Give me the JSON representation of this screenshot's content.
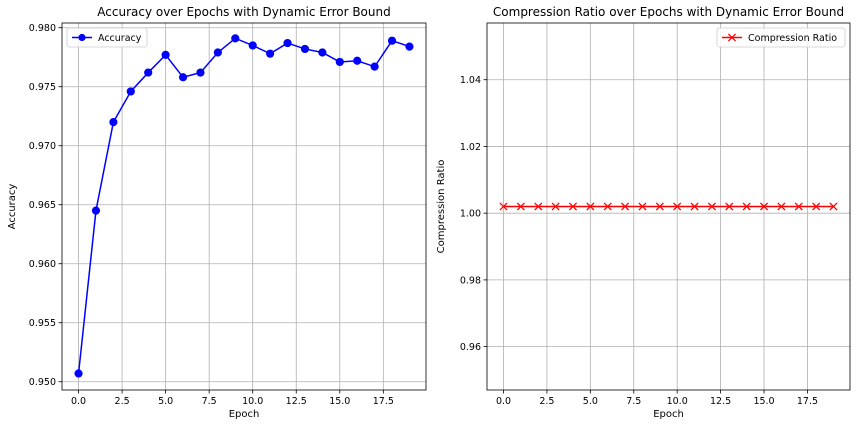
{
  "chart_data": [
    {
      "type": "line",
      "title": "Accuracy over Epochs with Dynamic Error Bound",
      "xlabel": "Epoch",
      "ylabel": "Accuracy",
      "xlim": [
        -0.95,
        19.95
      ],
      "ylim": [
        0.9493,
        0.9804
      ],
      "xticks": [
        0.0,
        2.5,
        5.0,
        7.5,
        10.0,
        12.5,
        15.0,
        17.5
      ],
      "xtick_labels": [
        "0.0",
        "2.5",
        "5.0",
        "7.5",
        "10.0",
        "12.5",
        "15.0",
        "17.5"
      ],
      "yticks": [
        0.95,
        0.955,
        0.96,
        0.965,
        0.97,
        0.975,
        0.98
      ],
      "ytick_labels": [
        "0.950",
        "0.955",
        "0.960",
        "0.965",
        "0.970",
        "0.975",
        "0.980"
      ],
      "grid": true,
      "legend_position": "upper-left",
      "series": [
        {
          "name": "Accuracy",
          "color": "#0000ff",
          "marker": "circle",
          "x": [
            0,
            1,
            2,
            3,
            4,
            5,
            6,
            7,
            8,
            9,
            10,
            11,
            12,
            13,
            14,
            15,
            16,
            17,
            18,
            19
          ],
          "y": [
            0.9507,
            0.9645,
            0.972,
            0.9746,
            0.9762,
            0.9777,
            0.9758,
            0.9762,
            0.9779,
            0.9791,
            0.9785,
            0.9778,
            0.9787,
            0.9782,
            0.9779,
            0.9771,
            0.9772,
            0.9767,
            0.9789,
            0.9784
          ]
        }
      ]
    },
    {
      "type": "line",
      "title": "Compression Ratio over Epochs with Dynamic Error Bound",
      "xlabel": "Epoch",
      "ylabel": "Compression Ratio",
      "xlim": [
        -0.95,
        19.95
      ],
      "ylim": [
        0.947,
        1.057
      ],
      "xticks": [
        0.0,
        2.5,
        5.0,
        7.5,
        10.0,
        12.5,
        15.0,
        17.5
      ],
      "xtick_labels": [
        "0.0",
        "2.5",
        "5.0",
        "7.5",
        "10.0",
        "12.5",
        "15.0",
        "17.5"
      ],
      "yticks": [
        0.96,
        0.98,
        1.0,
        1.02,
        1.04
      ],
      "ytick_labels": [
        "0.96",
        "0.98",
        "1.00",
        "1.02",
        "1.04"
      ],
      "grid": true,
      "legend_position": "upper-right",
      "series": [
        {
          "name": "Compression Ratio",
          "color": "#ff0000",
          "marker": "x",
          "x": [
            0,
            1,
            2,
            3,
            4,
            5,
            6,
            7,
            8,
            9,
            10,
            11,
            12,
            13,
            14,
            15,
            16,
            17,
            18,
            19
          ],
          "y": [
            1.002,
            1.002,
            1.002,
            1.002,
            1.002,
            1.002,
            1.002,
            1.002,
            1.002,
            1.002,
            1.002,
            1.002,
            1.002,
            1.002,
            1.002,
            1.002,
            1.002,
            1.002,
            1.002,
            1.002
          ]
        }
      ]
    }
  ]
}
